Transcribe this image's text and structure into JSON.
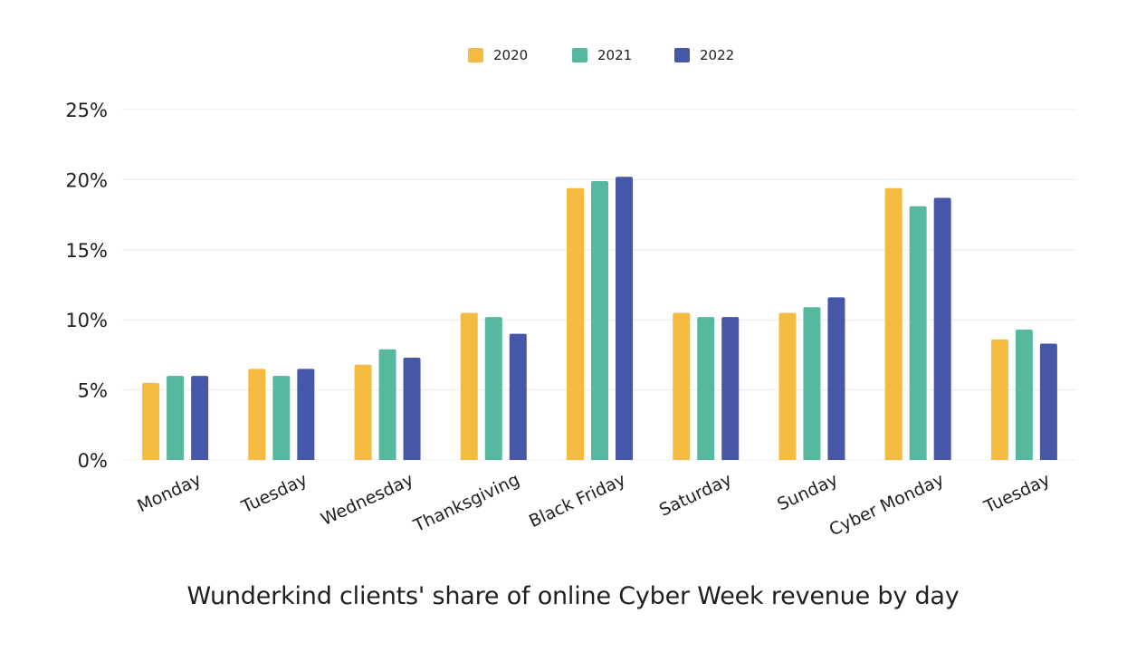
{
  "chart_data": {
    "type": "bar",
    "title": "Wunderkind clients' share of online Cyber Week revenue by day",
    "xlabel": "",
    "ylabel": "",
    "categories": [
      "Monday",
      "Tuesday",
      "Wednesday",
      "Thanksgiving",
      "Black Friday",
      "Saturday",
      "Sunday",
      "Cyber Monday",
      "Tuesday"
    ],
    "series": [
      {
        "name": "2020",
        "color": "#F5BA40",
        "values": [
          5.5,
          6.5,
          6.8,
          10.5,
          19.4,
          10.5,
          10.5,
          19.4,
          8.6
        ]
      },
      {
        "name": "2021",
        "color": "#56B89F",
        "values": [
          6.0,
          6.0,
          7.9,
          10.2,
          19.9,
          10.2,
          10.9,
          18.1,
          9.3
        ]
      },
      {
        "name": "2022",
        "color": "#4757A8",
        "values": [
          6.0,
          6.5,
          7.3,
          9.0,
          20.2,
          10.2,
          11.6,
          18.7,
          8.3
        ]
      }
    ],
    "ylim": [
      0,
      25
    ],
    "yticks": [
      0,
      5,
      10,
      15,
      20,
      25
    ],
    "ytick_labels": [
      "0%",
      "5%",
      "10%",
      "15%",
      "20%",
      "25%"
    ],
    "grid": true,
    "legend_position": "top-center"
  }
}
